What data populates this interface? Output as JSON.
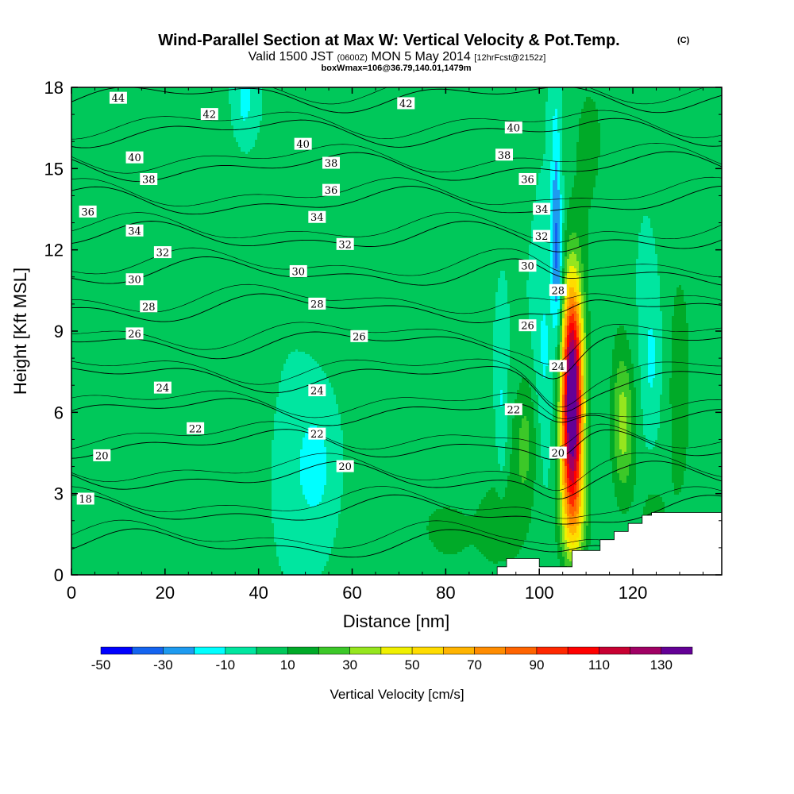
{
  "title": {
    "main": "Wind-Parallel Section at Max W: Vertical Velocity & Pot.Temp.",
    "copyright": "(C)",
    "valid_prefix": "Valid 1500 JST",
    "valid_utc": "(0600Z)",
    "valid_date": "MON 5 May 2014",
    "forecast": "[12hrFcst@2152z]",
    "box_info": "boxWmax=106@36.79,140.01,1479m"
  },
  "chart_data": {
    "type": "heatmap",
    "xlabel": "Distance [nm]",
    "ylabel": "Height [Kft MSL]",
    "xlim": [
      0,
      139
    ],
    "ylim": [
      0,
      18
    ],
    "x_ticks": [
      0,
      20,
      40,
      60,
      80,
      100,
      120
    ],
    "y_ticks": [
      0,
      3,
      6,
      9,
      12,
      15,
      18
    ],
    "colorbar": {
      "title": "Vertical Velocity [cm/s]",
      "bounds": [
        -50,
        -40,
        -30,
        -20,
        -10,
        0,
        10,
        20,
        30,
        40,
        50,
        60,
        70,
        80,
        90,
        100,
        110,
        120,
        130,
        140
      ],
      "tick_labels": [
        "-50",
        "-30",
        "-10",
        "10",
        "30",
        "50",
        "70",
        "90",
        "110",
        "130"
      ],
      "tick_values": [
        -50,
        -30,
        -10,
        10,
        30,
        50,
        70,
        90,
        110,
        130
      ],
      "colors": [
        "#0000ff",
        "#1464f0",
        "#1e9bf0",
        "#00ffff",
        "#00e6a0",
        "#00c85a",
        "#00aa28",
        "#3cc828",
        "#96e61e",
        "#f0f000",
        "#ffdc00",
        "#ffb400",
        "#ff8c00",
        "#ff6400",
        "#ff2800",
        "#ff0000",
        "#c80032",
        "#a00064",
        "#640096"
      ]
    },
    "w_background": 0,
    "w_features": [
      {
        "x": 107,
        "y": 7.2,
        "sx": 1.6,
        "sy": 2.6,
        "w": 135
      },
      {
        "x": 107,
        "y": 4.0,
        "sx": 1.8,
        "sy": 2.0,
        "w": 55
      },
      {
        "x": 107.5,
        "y": 1.8,
        "sx": 2.2,
        "sy": 1.2,
        "w": 25
      },
      {
        "x": 118,
        "y": 5.5,
        "sx": 1.8,
        "sy": 2.0,
        "w": 32
      },
      {
        "x": 130,
        "y": 7.0,
        "sx": 2.5,
        "sy": 4.5,
        "w": 14
      },
      {
        "x": 97,
        "y": 5.0,
        "sx": 2.0,
        "sy": 1.8,
        "w": 22
      },
      {
        "x": 124,
        "y": 2.2,
        "sx": 2.5,
        "sy": 1.2,
        "w": 12
      },
      {
        "x": 93,
        "y": 2.0,
        "sx": 3.0,
        "sy": 1.2,
        "w": 12
      },
      {
        "x": 84,
        "y": 1.5,
        "sx": 9.0,
        "sy": 2.5,
        "w": 9
      },
      {
        "x": 68,
        "y": 2.5,
        "sx": 9.0,
        "sy": 3.5,
        "w": 6
      },
      {
        "x": 35,
        "y": 10.0,
        "sx": 4.0,
        "sy": 5.0,
        "w": 5
      },
      {
        "x": 58,
        "y": 13.0,
        "sx": 5.0,
        "sy": 4.0,
        "w": 5
      },
      {
        "x": 10,
        "y": 16.0,
        "sx": 8.0,
        "sy": 2.5,
        "w": 5
      },
      {
        "x": 86,
        "y": 15.5,
        "sx": 7.0,
        "sy": 3.0,
        "w": 5
      },
      {
        "x": 110,
        "y": 14.0,
        "sx": 3.0,
        "sy": 4.0,
        "w": 8
      },
      {
        "x": 112,
        "y": 16.5,
        "sx": 4.0,
        "sy": 2.0,
        "w": 6
      },
      {
        "x": 117,
        "y": 8.0,
        "sx": 1.5,
        "sy": 3.0,
        "w": 5
      },
      {
        "x": 104,
        "y": 11.0,
        "sx": 0.8,
        "sy": 2.0,
        "w": -28
      },
      {
        "x": 103.5,
        "y": 14.5,
        "sx": 0.8,
        "sy": 2.5,
        "w": -20
      },
      {
        "x": 101,
        "y": 8.0,
        "sx": 1.5,
        "sy": 3.0,
        "w": -12
      },
      {
        "x": 52,
        "y": 4.0,
        "sx": 3.5,
        "sy": 1.8,
        "w": -16
      },
      {
        "x": 37,
        "y": 17.5,
        "sx": 1.5,
        "sy": 1.0,
        "w": -15
      },
      {
        "x": 124,
        "y": 8.0,
        "sx": 1.5,
        "sy": 1.8,
        "w": -13
      },
      {
        "x": 92,
        "y": 6.0,
        "sx": 0.8,
        "sy": 2.5,
        "w": -12
      }
    ],
    "terrain": [
      [
        91,
        0.3
      ],
      [
        93,
        0.3
      ],
      [
        93,
        0.6
      ],
      [
        100,
        0.6
      ],
      [
        100,
        0.3
      ],
      [
        107,
        0.3
      ],
      [
        107,
        0.9
      ],
      [
        113,
        0.9
      ],
      [
        113,
        1.3
      ],
      [
        116,
        1.3
      ],
      [
        116,
        1.6
      ],
      [
        119,
        1.6
      ],
      [
        119,
        1.9
      ],
      [
        122,
        1.9
      ],
      [
        122,
        2.2
      ],
      [
        124,
        2.2
      ],
      [
        124,
        2.3
      ],
      [
        139,
        2.3
      ],
      [
        139,
        0
      ],
      [
        91,
        0
      ]
    ],
    "theta_contours": [
      {
        "level": 18,
        "label_pos": [
          3.0,
          2.8
        ]
      },
      {
        "level": 20,
        "label_pos": [
          6.5,
          4.4
        ],
        "label_pos2": [
          58.5,
          4.0
        ],
        "label_pos3": [
          104,
          4.5
        ]
      },
      {
        "level": 22,
        "label_pos": [
          26.5,
          5.4
        ],
        "label_pos2": [
          52.5,
          5.2
        ],
        "label_pos3": [
          94.5,
          6.1
        ]
      },
      {
        "level": 24,
        "label_pos": [
          19.5,
          6.9
        ],
        "label_pos2": [
          52.5,
          6.8
        ],
        "label_pos3": [
          104,
          7.7
        ]
      },
      {
        "level": 26,
        "label_pos": [
          13.5,
          8.9
        ],
        "label_pos2": [
          61.5,
          8.8
        ],
        "label_pos3": [
          97.5,
          9.2
        ]
      },
      {
        "level": 28,
        "label_pos": [
          16.5,
          9.9
        ],
        "label_pos2": [
          52.5,
          10.0
        ],
        "label_pos3": [
          104,
          10.5
        ]
      },
      {
        "level": 30,
        "label_pos": [
          13.5,
          10.9
        ],
        "label_pos2": [
          48.5,
          11.2
        ],
        "label_pos3": [
          97.5,
          11.4
        ]
      },
      {
        "level": 32,
        "label_pos": [
          19.5,
          11.9
        ],
        "label_pos2": [
          58.5,
          12.2
        ],
        "label_pos3": [
          100.5,
          12.5
        ]
      },
      {
        "level": 34,
        "label_pos": [
          13.5,
          12.7
        ],
        "label_pos2": [
          52.5,
          13.2
        ],
        "label_pos3": [
          100.5,
          13.5
        ]
      },
      {
        "level": 36,
        "label_pos": [
          3.5,
          13.4
        ],
        "label_pos2": [
          55.5,
          14.2
        ],
        "label_pos3": [
          97.5,
          14.6
        ]
      },
      {
        "level": 38,
        "label_pos": [
          16.5,
          14.6
        ],
        "label_pos2": [
          55.5,
          15.2
        ],
        "label_pos3": [
          92.5,
          15.5
        ]
      },
      {
        "level": 40,
        "label_pos": [
          13.5,
          15.4
        ],
        "label_pos2": [
          49.5,
          15.9
        ],
        "label_pos3": [
          94.5,
          16.5
        ]
      },
      {
        "level": 42,
        "label_pos": [
          29.5,
          17.0
        ],
        "label_pos2": [
          71.5,
          17.4
        ]
      },
      {
        "level": 44,
        "label_pos": [
          10.0,
          17.6
        ]
      }
    ]
  }
}
